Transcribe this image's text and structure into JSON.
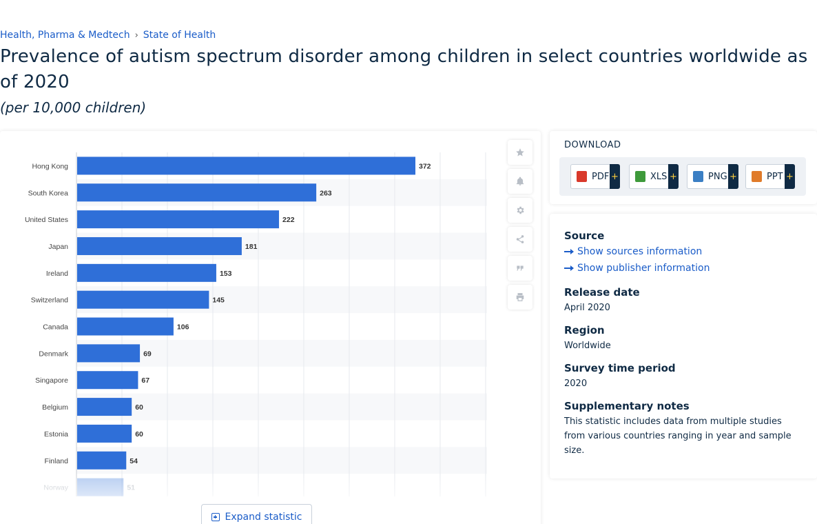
{
  "breadcrumb": {
    "category": "Health, Pharma & Medtech",
    "separator": "›",
    "topic": "State of Health"
  },
  "title": "Prevalence of autism spectrum disorder among children in select countries worldwide as of 2020",
  "subtitle": "(per 10,000 children)",
  "chart_data": {
    "type": "bar",
    "orientation": "horizontal",
    "categories": [
      "Hong Kong",
      "South Korea",
      "United States",
      "Japan",
      "Ireland",
      "Switzerland",
      "Canada",
      "Denmark",
      "Singapore",
      "Belgium",
      "Estonia",
      "Finland",
      "Norway"
    ],
    "values": [
      372,
      263,
      222,
      181,
      153,
      145,
      106,
      69,
      67,
      60,
      60,
      54,
      51
    ],
    "data_labels": [
      "372",
      "263",
      "222",
      "181",
      "153",
      "145",
      "106",
      "69",
      "67",
      "60",
      "60",
      "54",
      "51"
    ],
    "xlim": [
      0,
      450
    ],
    "grid": true,
    "bar_color": "#2f6fd8",
    "fade_last_row": true
  },
  "tools": [
    {
      "name": "star-icon",
      "glyph": "★"
    },
    {
      "name": "bell-icon",
      "glyph": "bell"
    },
    {
      "name": "gear-icon",
      "glyph": "⚙"
    },
    {
      "name": "share-icon",
      "glyph": "share"
    },
    {
      "name": "quote-icon",
      "glyph": "❝"
    },
    {
      "name": "print-icon",
      "glyph": "print"
    }
  ],
  "expand_label": "Expand statistic",
  "download": {
    "title": "DOWNLOAD",
    "buttons": [
      {
        "label": "PDF",
        "plus": "+",
        "color": "#d9392b"
      },
      {
        "label": "XLS",
        "plus": "+",
        "color": "#3e9a3b"
      },
      {
        "label": "PNG",
        "plus": "+",
        "color": "#3b7fc4"
      },
      {
        "label": "PPT",
        "plus": "+",
        "color": "#e07b2a"
      }
    ]
  },
  "info": {
    "source_heading": "Source",
    "show_sources": "Show sources information",
    "show_publisher": "Show publisher information",
    "release_heading": "Release date",
    "release_value": "April 2020",
    "region_heading": "Region",
    "region_value": "Worldwide",
    "survey_heading": "Survey time period",
    "survey_value": "2020",
    "notes_heading": "Supplementary notes",
    "notes_value": "This statistic includes data from multiple studies from various countries ranging in year and sample size."
  }
}
